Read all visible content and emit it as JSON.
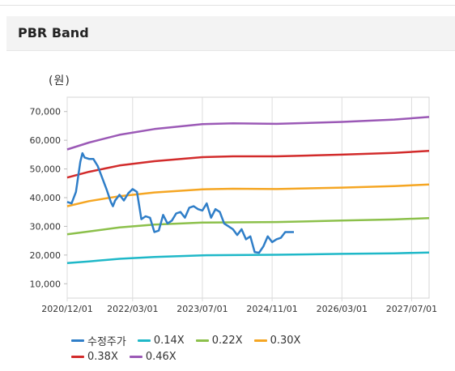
{
  "panel": {
    "title": "PBR Band"
  },
  "chart_data": {
    "type": "line",
    "title": "PBR Band",
    "unit_label": "(원)",
    "xlabel": "",
    "ylabel": "",
    "ylim": [
      5000,
      75000
    ],
    "y_ticks": [
      "10,000",
      "20,000",
      "30,000",
      "40,000",
      "50,000",
      "60,000",
      "70,000"
    ],
    "y_tick_values": [
      10000,
      20000,
      30000,
      40000,
      50000,
      60000,
      70000
    ],
    "x_ticks": [
      "2020/12/01",
      "2022/03/01",
      "2023/07/01",
      "2024/11/01",
      "2026/03/01",
      "2027/07/01"
    ],
    "x_tick_months": [
      0,
      15,
      31,
      47,
      63,
      79
    ],
    "x_range_months": [
      0,
      83
    ],
    "legend": "bottom",
    "grid": "vertical",
    "bands": [
      {
        "name": "0.14X",
        "color": "#1fb8c8",
        "x": [
          0,
          5,
          12,
          20,
          31,
          38,
          48,
          63,
          75,
          83
        ],
        "values": [
          17200,
          17800,
          18700,
          19300,
          19900,
          20000,
          20100,
          20400,
          20600,
          20900
        ]
      },
      {
        "name": "0.22X",
        "color": "#8cc04b",
        "x": [
          0,
          5,
          12,
          20,
          31,
          38,
          48,
          63,
          75,
          83
        ],
        "values": [
          27200,
          28200,
          29600,
          30600,
          31300,
          31400,
          31500,
          32000,
          32400,
          32900
        ]
      },
      {
        "name": "0.30X",
        "color": "#f5a623",
        "x": [
          0,
          5,
          12,
          20,
          31,
          38,
          48,
          63,
          75,
          83
        ],
        "values": [
          37000,
          38800,
          40500,
          41800,
          42900,
          43100,
          43000,
          43500,
          44000,
          44600
        ]
      },
      {
        "name": "0.38X",
        "color": "#d22b2b",
        "x": [
          0,
          5,
          12,
          20,
          31,
          38,
          48,
          63,
          75,
          83
        ],
        "values": [
          47000,
          49000,
          51200,
          52700,
          54100,
          54400,
          54400,
          55000,
          55600,
          56300
        ]
      },
      {
        "name": "0.46X",
        "color": "#9b59b6",
        "x": [
          0,
          5,
          12,
          20,
          31,
          38,
          48,
          63,
          75,
          83
        ],
        "values": [
          56800,
          59200,
          61900,
          63900,
          65600,
          65900,
          65700,
          66400,
          67200,
          68100
        ]
      }
    ],
    "price": {
      "name": "수정주가",
      "color": "#2f7ec8",
      "x": [
        0,
        1,
        2,
        3,
        3.5,
        4,
        5,
        6,
        7,
        8,
        9,
        10,
        10.5,
        11,
        12,
        13,
        14,
        15,
        16,
        17,
        18,
        19,
        20,
        21,
        22,
        23,
        24,
        25,
        26,
        27,
        28,
        29,
        30,
        31,
        32,
        33,
        34,
        35,
        36,
        37,
        38,
        39,
        40,
        41,
        42,
        43,
        44,
        45,
        46,
        47,
        48,
        49,
        50,
        51,
        52
      ],
      "values": [
        38500,
        38000,
        42000,
        52500,
        55500,
        54000,
        53500,
        53500,
        51000,
        47000,
        43000,
        38500,
        37000,
        39000,
        41000,
        39000,
        41500,
        43000,
        42000,
        32500,
        33500,
        33000,
        28000,
        28500,
        34000,
        31000,
        32000,
        34500,
        35000,
        33000,
        36500,
        37000,
        36000,
        35500,
        38000,
        33000,
        36000,
        35000,
        31000,
        30000,
        29000,
        27000,
        29000,
        25500,
        26500,
        21000,
        20800,
        23000,
        26500,
        24500,
        25500,
        26000,
        28000,
        28000,
        28000
      ]
    }
  },
  "legend": {
    "rows": [
      [
        {
          "label": "수정주가",
          "color": "#2f7ec8"
        },
        {
          "label": "0.14X",
          "color": "#1fb8c8"
        },
        {
          "label": "0.22X",
          "color": "#8cc04b"
        },
        {
          "label": "0.30X",
          "color": "#f5a623"
        }
      ],
      [
        {
          "label": "0.38X",
          "color": "#d22b2b"
        },
        {
          "label": "0.46X",
          "color": "#9b59b6"
        }
      ]
    ]
  }
}
